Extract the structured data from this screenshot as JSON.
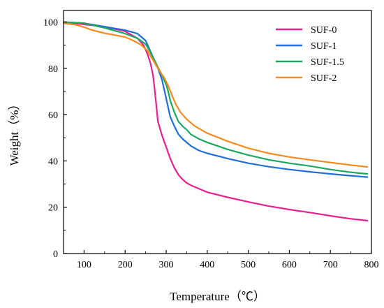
{
  "chart_data": {
    "type": "line",
    "xlabel": "Temperature（℃）",
    "ylabel": "Weight（%）",
    "xlim": [
      50,
      800
    ],
    "ylim": [
      0,
      105
    ],
    "xticks": [
      100,
      200,
      300,
      400,
      500,
      600,
      700,
      800
    ],
    "yticks": [
      0,
      20,
      40,
      60,
      80,
      100
    ],
    "grid": false,
    "legend_position": "top-right",
    "series": [
      {
        "name": "SUF-0",
        "color": "#e8208f",
        "x": [
          50,
          100,
          150,
          200,
          230,
          245,
          255,
          262,
          268,
          272,
          276,
          280,
          290,
          300,
          310,
          320,
          330,
          340,
          350,
          360,
          380,
          400,
          450,
          500,
          550,
          600,
          650,
          700,
          750,
          790
        ],
        "y": [
          100,
          99,
          98,
          96,
          93,
          90,
          86,
          82,
          77,
          71,
          64,
          57,
          51,
          46,
          41,
          37,
          34,
          32,
          30.5,
          29.5,
          28,
          26.5,
          24.3,
          22.3,
          20.5,
          19,
          17.7,
          16.3,
          15,
          14.2
        ]
      },
      {
        "name": "SUF-1",
        "color": "#1f6fd6",
        "x": [
          50,
          100,
          150,
          200,
          230,
          250,
          260,
          270,
          280,
          290,
          300,
          305,
          310,
          320,
          330,
          340,
          350,
          360,
          380,
          400,
          450,
          500,
          550,
          600,
          650,
          700,
          750,
          790
        ],
        "y": [
          100,
          99.5,
          98,
          96.5,
          95,
          92,
          88,
          84,
          80,
          75,
          67,
          63,
          59,
          55,
          51.5,
          49.5,
          48,
          46.5,
          44.5,
          43.3,
          41,
          39,
          37.5,
          36.3,
          35.3,
          34.4,
          33.6,
          33
        ]
      },
      {
        "name": "SUF-1.5",
        "color": "#1aa860",
        "x": [
          50,
          100,
          150,
          200,
          230,
          250,
          260,
          270,
          280,
          290,
          300,
          305,
          310,
          320,
          330,
          340,
          350,
          360,
          380,
          400,
          450,
          500,
          550,
          600,
          650,
          700,
          750,
          790
        ],
        "y": [
          100,
          99.5,
          97.5,
          95,
          93,
          90.5,
          87.5,
          84,
          80.5,
          77,
          73,
          70,
          66,
          61,
          57,
          55,
          53.5,
          51.5,
          49.5,
          48,
          45,
          42.5,
          40.5,
          39,
          37.8,
          36.3,
          35.1,
          34.4
        ]
      },
      {
        "name": "SUF-2",
        "color": "#f58a1f",
        "x": [
          50,
          80,
          100,
          120,
          150,
          200,
          220,
          240,
          255,
          265,
          275,
          285,
          295,
          305,
          315,
          325,
          335,
          350,
          370,
          400,
          450,
          500,
          550,
          600,
          650,
          700,
          750,
          790
        ],
        "y": [
          99.5,
          98.8,
          97.8,
          96.5,
          95.2,
          93.5,
          92,
          90,
          87.5,
          84.5,
          81.5,
          78.5,
          76,
          72.5,
          68,
          64,
          61,
          58,
          55,
          52,
          48.5,
          45.5,
          43.3,
          41.7,
          40.5,
          39.3,
          38.2,
          37.4
        ]
      }
    ]
  }
}
